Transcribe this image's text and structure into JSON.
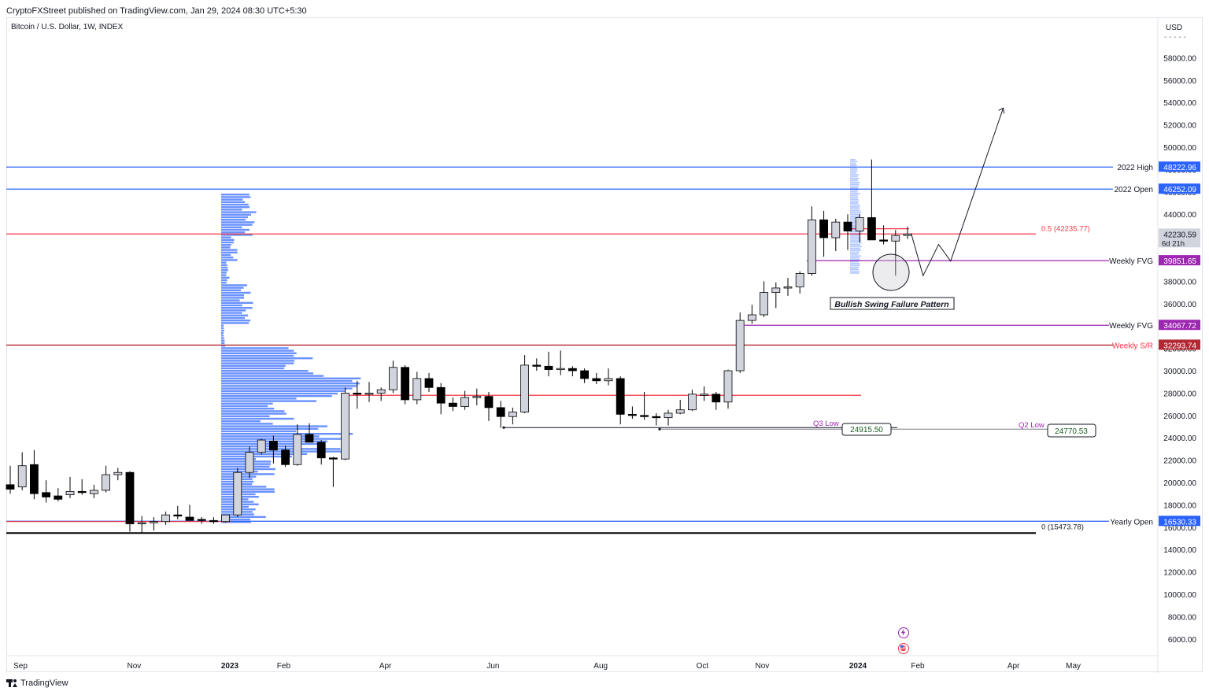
{
  "header": {
    "published": "CryptoFXStreet published on TradingView.com, Jan 29, 2024 08:30 UTC+5:30",
    "symbol": "Bitcoin / U.S. Dollar, 1W, INDEX",
    "currency": "USD"
  },
  "footer": {
    "brand": "TradingView"
  },
  "icons": [
    "lightning-icon",
    "flag-icon"
  ],
  "chart_data": {
    "type": "candlestick",
    "title": "Bitcoin / U.S. Dollar, 1W, INDEX",
    "y_axis": {
      "ticks": [
        "6000.00",
        "8000.00",
        "10000.00",
        "12000.00",
        "14000.00",
        "16000.00",
        "18000.00",
        "20000.00",
        "22000.00",
        "24000.00",
        "26000.00",
        "28000.00",
        "30000.00",
        "32000.00",
        "34000.00",
        "36000.00",
        "38000.00",
        "40000.00",
        "42000.00",
        "44000.00",
        "46000.00",
        "48000.00",
        "50000.00",
        "52000.00",
        "54000.00",
        "56000.00",
        "58000.00"
      ],
      "range": [
        5000,
        60000
      ],
      "side": "right"
    },
    "x_axis": {
      "labels": [
        {
          "text": "Sep",
          "week": 0
        },
        {
          "text": "Nov",
          "week": 9.5
        },
        {
          "text": "2023",
          "week": 17.5,
          "bold": true
        },
        {
          "text": "Feb",
          "week": 22
        },
        {
          "text": "Apr",
          "week": 30.5
        },
        {
          "text": "Jun",
          "week": 39.5
        },
        {
          "text": "Aug",
          "week": 48.5
        },
        {
          "text": "Oct",
          "week": 57
        },
        {
          "text": "Nov",
          "week": 62
        },
        {
          "text": "2024",
          "week": 70,
          "bold": true
        },
        {
          "text": "Feb",
          "week": 75
        },
        {
          "text": "Apr",
          "week": 83
        },
        {
          "text": "May",
          "week": 88
        }
      ]
    },
    "candles": [
      {
        "o": 19800,
        "h": 21500,
        "l": 19000,
        "c": 19400
      },
      {
        "o": 19600,
        "h": 22700,
        "l": 19300,
        "c": 21500
      },
      {
        "o": 21600,
        "h": 22900,
        "l": 18500,
        "c": 19000
      },
      {
        "o": 19100,
        "h": 20200,
        "l": 18200,
        "c": 18700
      },
      {
        "o": 18800,
        "h": 19500,
        "l": 18300,
        "c": 18500
      },
      {
        "o": 18900,
        "h": 20500,
        "l": 18600,
        "c": 19200
      },
      {
        "o": 19200,
        "h": 20300,
        "l": 18900,
        "c": 19100
      },
      {
        "o": 19000,
        "h": 19800,
        "l": 18600,
        "c": 19300
      },
      {
        "o": 19300,
        "h": 21500,
        "l": 19100,
        "c": 20700
      },
      {
        "o": 20700,
        "h": 21300,
        "l": 20200,
        "c": 20900
      },
      {
        "o": 20900,
        "h": 21000,
        "l": 15600,
        "c": 16300
      },
      {
        "o": 16300,
        "h": 17000,
        "l": 15500,
        "c": 16400
      },
      {
        "o": 16400,
        "h": 16900,
        "l": 15700,
        "c": 16500
      },
      {
        "o": 16500,
        "h": 17400,
        "l": 16200,
        "c": 17100
      },
      {
        "o": 17100,
        "h": 17900,
        "l": 16700,
        "c": 17000
      },
      {
        "o": 16900,
        "h": 18000,
        "l": 16600,
        "c": 16600
      },
      {
        "o": 16700,
        "h": 16900,
        "l": 16300,
        "c": 16600
      },
      {
        "o": 16600,
        "h": 16900,
        "l": 16300,
        "c": 16500
      },
      {
        "o": 16500,
        "h": 17100,
        "l": 16400,
        "c": 17100
      },
      {
        "o": 17100,
        "h": 21300,
        "l": 16900,
        "c": 20900
      },
      {
        "o": 20900,
        "h": 23200,
        "l": 20400,
        "c": 22700
      },
      {
        "o": 22700,
        "h": 23900,
        "l": 22500,
        "c": 23800
      },
      {
        "o": 23700,
        "h": 24200,
        "l": 21700,
        "c": 22900
      },
      {
        "o": 22900,
        "h": 23300,
        "l": 21400,
        "c": 21600
      },
      {
        "o": 21600,
        "h": 25200,
        "l": 21500,
        "c": 24300
      },
      {
        "o": 24300,
        "h": 25300,
        "l": 23600,
        "c": 23600
      },
      {
        "o": 23600,
        "h": 23800,
        "l": 21600,
        "c": 22200
      },
      {
        "o": 22200,
        "h": 22300,
        "l": 19600,
        "c": 22100
      },
      {
        "o": 22100,
        "h": 28500,
        "l": 22000,
        "c": 28000
      },
      {
        "o": 28000,
        "h": 29100,
        "l": 26600,
        "c": 27900
      },
      {
        "o": 27900,
        "h": 29000,
        "l": 27200,
        "c": 28000
      },
      {
        "o": 28000,
        "h": 28500,
        "l": 27300,
        "c": 28300
      },
      {
        "o": 28300,
        "h": 30900,
        "l": 28000,
        "c": 30300
      },
      {
        "o": 30300,
        "h": 30500,
        "l": 27000,
        "c": 27400
      },
      {
        "o": 27400,
        "h": 29900,
        "l": 27000,
        "c": 29300
      },
      {
        "o": 29300,
        "h": 29800,
        "l": 28100,
        "c": 28500
      },
      {
        "o": 28500,
        "h": 28900,
        "l": 26100,
        "c": 27100
      },
      {
        "o": 27100,
        "h": 27600,
        "l": 26400,
        "c": 26800
      },
      {
        "o": 26800,
        "h": 28200,
        "l": 26500,
        "c": 27600
      },
      {
        "o": 27600,
        "h": 28400,
        "l": 26900,
        "c": 27700
      },
      {
        "o": 27700,
        "h": 28100,
        "l": 25500,
        "c": 26700
      },
      {
        "o": 26700,
        "h": 27300,
        "l": 24900,
        "c": 25900
      },
      {
        "o": 25900,
        "h": 26700,
        "l": 25200,
        "c": 26300
      },
      {
        "o": 26300,
        "h": 31400,
        "l": 26200,
        "c": 30500
      },
      {
        "o": 30500,
        "h": 31100,
        "l": 30000,
        "c": 30400
      },
      {
        "o": 30400,
        "h": 31700,
        "l": 29500,
        "c": 30100
      },
      {
        "o": 30100,
        "h": 31800,
        "l": 29600,
        "c": 30200
      },
      {
        "o": 30200,
        "h": 30400,
        "l": 29500,
        "c": 30000
      },
      {
        "o": 30000,
        "h": 30200,
        "l": 28900,
        "c": 29300
      },
      {
        "o": 29300,
        "h": 29800,
        "l": 28800,
        "c": 29100
      },
      {
        "o": 29100,
        "h": 30200,
        "l": 28700,
        "c": 29300
      },
      {
        "o": 29300,
        "h": 29500,
        "l": 25200,
        "c": 26100
      },
      {
        "o": 26100,
        "h": 26800,
        "l": 25700,
        "c": 26000
      },
      {
        "o": 26000,
        "h": 28100,
        "l": 25600,
        "c": 25900
      },
      {
        "o": 25900,
        "h": 26200,
        "l": 25100,
        "c": 25800
      },
      {
        "o": 25800,
        "h": 26500,
        "l": 25100,
        "c": 26200
      },
      {
        "o": 26200,
        "h": 27400,
        "l": 26100,
        "c": 26500
      },
      {
        "o": 26500,
        "h": 28300,
        "l": 26400,
        "c": 27900
      },
      {
        "o": 27900,
        "h": 28600,
        "l": 27300,
        "c": 27900
      },
      {
        "o": 27900,
        "h": 28100,
        "l": 26500,
        "c": 27200
      },
      {
        "o": 27200,
        "h": 30100,
        "l": 26600,
        "c": 30000
      },
      {
        "o": 30000,
        "h": 35200,
        "l": 29800,
        "c": 34500
      },
      {
        "o": 34500,
        "h": 35900,
        "l": 34200,
        "c": 35000
      },
      {
        "o": 35000,
        "h": 38000,
        "l": 34800,
        "c": 37000
      },
      {
        "o": 37000,
        "h": 37900,
        "l": 35600,
        "c": 37400
      },
      {
        "o": 37400,
        "h": 38300,
        "l": 36700,
        "c": 37500
      },
      {
        "o": 37500,
        "h": 38900,
        "l": 36900,
        "c": 38700
      },
      {
        "o": 38700,
        "h": 44700,
        "l": 38500,
        "c": 43500
      },
      {
        "o": 43500,
        "h": 44300,
        "l": 40200,
        "c": 41900
      },
      {
        "o": 41900,
        "h": 43600,
        "l": 40700,
        "c": 43300
      },
      {
        "o": 43300,
        "h": 44000,
        "l": 40800,
        "c": 42500
      },
      {
        "o": 42500,
        "h": 44000,
        "l": 41500,
        "c": 43700
      },
      {
        "o": 43700,
        "h": 48900,
        "l": 41800,
        "c": 41700
      },
      {
        "o": 41700,
        "h": 43000,
        "l": 41300,
        "c": 41600
      },
      {
        "o": 41600,
        "h": 42600,
        "l": 38500,
        "c": 42100
      },
      {
        "o": 42100,
        "h": 42900,
        "l": 41800,
        "c": 42230
      }
    ],
    "volume_profiles": [
      {
        "name": "profile-2023",
        "rows": "horizontal histogram bars",
        "color": "#2962ff"
      },
      {
        "name": "profile-2024",
        "rows": "horizontal histogram bars",
        "color": "#2962ff"
      }
    ],
    "levels": [
      {
        "label": "2022 High",
        "value": 48222.96,
        "price_label": "48222.96",
        "color": "#2962ff",
        "tag_bg": "#2962ff"
      },
      {
        "label": "2022 Open",
        "value": 46252.09,
        "price_label": "46252.09",
        "color": "#2962ff",
        "tag_bg": "#2962ff"
      },
      {
        "label": "0.5 (42235.77)",
        "value": 42235.77,
        "color": "#f23645"
      },
      {
        "label": "Weekly FVG",
        "value": 39851.65,
        "price_label": "39851.65",
        "color": "#9c27b0",
        "tag_bg": "#9c27b0"
      },
      {
        "label": "Weekly FVG",
        "value": 34067.72,
        "price_label": "34067.72",
        "color": "#9c27b0",
        "tag_bg": "#9c27b0"
      },
      {
        "label": "Weekly S/R",
        "value": 32293.74,
        "price_label": "32293.74",
        "color": "#b22833",
        "tag_bg": "#b22833"
      },
      {
        "label": "Yearly Open",
        "value": 16530.33,
        "price_label": "16530.33",
        "color": "#2962ff",
        "tag_bg": "#2962ff"
      },
      {
        "label": "0 (15473.78)",
        "value": 15473.78,
        "color": "#000000"
      }
    ],
    "current_price": {
      "value": 42230.59,
      "label": "42230.59",
      "countdown": "6d 21h"
    },
    "annotations": [
      {
        "text": "Bullish Swing Failure Pattern",
        "style": "boxed-italic-bold"
      },
      {
        "text": "Q3 Low",
        "color": "#9c27b0"
      },
      {
        "text": "24915.50",
        "boxed": true
      },
      {
        "text": "Q2 Low",
        "color": "#9c27b0"
      },
      {
        "text": "24770.53",
        "boxed": true
      }
    ],
    "projection_path": [
      {
        "week": 75.3,
        "value": 42300
      },
      {
        "week": 76.3,
        "value": 38500
      },
      {
        "week": 77.6,
        "value": 41300
      },
      {
        "week": 78.6,
        "value": 39800
      },
      {
        "week": 83,
        "value": 53500
      }
    ],
    "colors": {
      "up_fill": "#d1d4dc",
      "down_fill": "#000000",
      "candle_border": "#000000",
      "profile": "#2962ff",
      "grid": "#ffffff"
    },
    "grid": false,
    "legend": "none"
  }
}
